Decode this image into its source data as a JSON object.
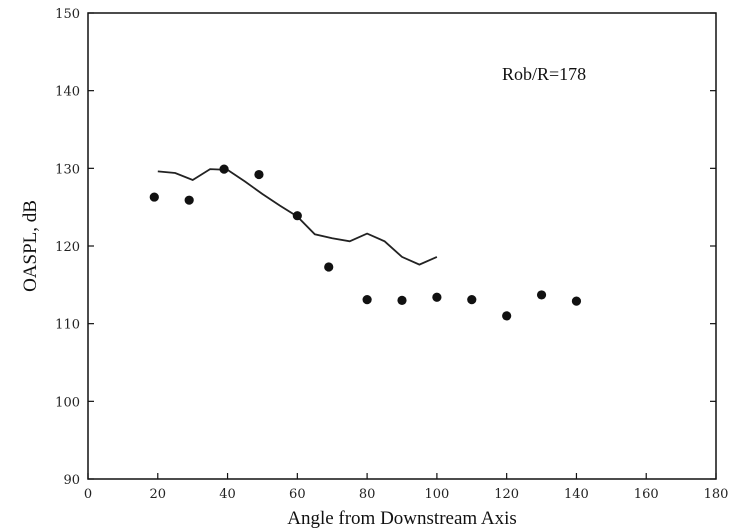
{
  "chart_data": {
    "type": "scatter",
    "xlabel": "Angle from Downstream Axis",
    "ylabel": "OASPL, dB",
    "xlim": [
      0,
      180
    ],
    "ylim": [
      90,
      150
    ],
    "xticks": [
      "0",
      "20",
      "40",
      "60",
      "80",
      "100",
      "120",
      "140",
      "160",
      "180"
    ],
    "yticks": [
      "90",
      "100",
      "110",
      "120",
      "130",
      "140",
      "150"
    ],
    "annotation": "Rob/R=178",
    "grid": false,
    "series": [
      {
        "kind": "points",
        "x": [
          19,
          29,
          39,
          49,
          60,
          69,
          80,
          90,
          100,
          110,
          120,
          130,
          140
        ],
        "y": [
          126.3,
          125.9,
          129.9,
          129.2,
          123.9,
          117.3,
          113.1,
          113.0,
          113.4,
          113.1,
          111.0,
          113.7,
          112.9
        ]
      },
      {
        "kind": "line",
        "x": [
          20,
          25,
          30,
          35,
          40,
          45,
          50,
          55,
          60,
          65,
          70,
          75,
          80,
          85,
          90,
          95,
          100
        ],
        "y": [
          129.6,
          129.4,
          128.5,
          129.9,
          129.8,
          128.3,
          126.7,
          125.2,
          123.8,
          121.5,
          121.0,
          120.6,
          121.6,
          120.6,
          118.6,
          117.6,
          118.6
        ]
      }
    ]
  }
}
